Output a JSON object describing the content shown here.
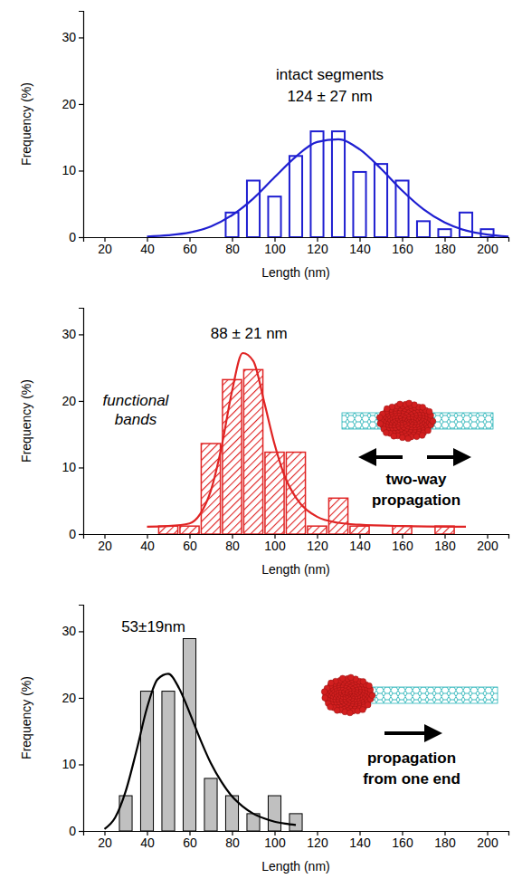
{
  "chart_data": [
    {
      "type": "bar",
      "x": [
        80,
        90,
        100,
        110,
        120,
        130,
        140,
        150,
        160,
        170,
        180,
        190,
        200
      ],
      "values": [
        3.7,
        8.5,
        6.1,
        12.2,
        15.9,
        15.9,
        9.8,
        11,
        8.5,
        2.4,
        1.2,
        3.7,
        1.2
      ],
      "color": "#1f1fd1",
      "curve": {
        "color": "#1f1fd1",
        "x": [
          40,
          50,
          60,
          70,
          80,
          90,
          100,
          110,
          120,
          130,
          140,
          150,
          160,
          170,
          180,
          190,
          200,
          210
        ],
        "values": [
          0.1,
          0.3,
          0.7,
          1.6,
          3.3,
          5.8,
          9.0,
          12.1,
          14.3,
          14.7,
          13.2,
          10.3,
          7.0,
          4.2,
          2.2,
          1.0,
          0.4,
          0.1
        ]
      },
      "label": [
        "intact segments",
        "124 ± 27 nm"
      ],
      "xlabel": "Length (nm)",
      "ylabel": "Frequency (%)",
      "xlim": [
        10,
        210
      ],
      "xticks": [
        20,
        40,
        60,
        80,
        100,
        120,
        140,
        160,
        180,
        200
      ],
      "ylim": [
        0,
        34
      ],
      "yticks": [
        0,
        10,
        20,
        30
      ]
    },
    {
      "type": "bar",
      "x": [
        50,
        60,
        70,
        80,
        90,
        100,
        110,
        120,
        130,
        140,
        160,
        180
      ],
      "values": [
        1.2,
        1.2,
        13.6,
        23.2,
        24.7,
        12.3,
        12.3,
        1.2,
        5.4,
        1.2,
        1.2,
        1.2
      ],
      "color": "#e02424",
      "curve": {
        "color": "#e02424",
        "x": [
          40,
          50,
          60,
          65,
          70,
          75,
          80,
          85,
          90,
          95,
          100,
          105,
          110,
          120,
          130,
          140,
          160,
          190
        ],
        "values": [
          1.1,
          1.2,
          1.6,
          3.0,
          6.5,
          13.0,
          21.5,
          27.2,
          26.0,
          20.0,
          13.5,
          8.5,
          5.5,
          2.6,
          1.7,
          1.4,
          1.2,
          1.1
        ]
      },
      "label": [
        "88 ± 21 nm"
      ],
      "caption": [
        "functional",
        "bands"
      ],
      "inset_label": [
        "two-way",
        "propagation"
      ],
      "xlabel": "Length (nm)",
      "ylabel": "Frequency (%)",
      "xlim": [
        10,
        210
      ],
      "xticks": [
        20,
        40,
        60,
        80,
        100,
        120,
        140,
        160,
        180,
        200
      ],
      "ylim": [
        0,
        34
      ],
      "yticks": [
        0,
        10,
        20,
        30
      ]
    },
    {
      "type": "bar",
      "x": [
        30,
        40,
        50,
        60,
        70,
        80,
        90,
        100,
        110
      ],
      "values": [
        5.3,
        21,
        21,
        28.9,
        7.9,
        5.3,
        2.6,
        5.3,
        2.6
      ],
      "color": "#c0c0c0",
      "curve": {
        "color": "#000000",
        "x": [
          20,
          25,
          30,
          35,
          40,
          45,
          50,
          55,
          60,
          65,
          70,
          75,
          80,
          85,
          90,
          95,
          100,
          105,
          110
        ],
        "values": [
          0.3,
          2.0,
          6.0,
          12.0,
          18.5,
          22.8,
          23.6,
          21.5,
          17.8,
          13.8,
          10.2,
          7.4,
          5.2,
          3.7,
          2.6,
          1.9,
          1.4,
          1.1,
          0.9
        ]
      },
      "label": [
        "53±19nm"
      ],
      "inset_label": [
        "propagation",
        "from one end"
      ],
      "xlabel": "Length (nm)",
      "ylabel": "Frequency (%)",
      "xlim": [
        10,
        210
      ],
      "xticks": [
        20,
        40,
        60,
        80,
        100,
        120,
        140,
        160,
        180,
        200
      ],
      "ylim": [
        0,
        34
      ],
      "yticks": [
        0,
        10,
        20,
        30
      ]
    }
  ]
}
